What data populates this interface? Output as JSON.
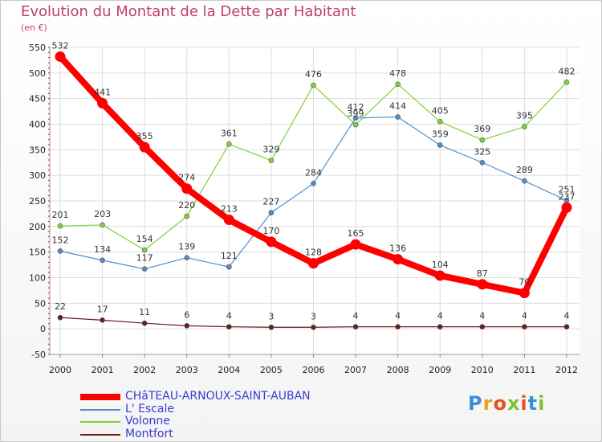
{
  "title": "Evolution du Montant de la Dette par Habitant",
  "unit_label": "(en €)",
  "colors": {
    "title": "#c0406a",
    "legend_text": "#3a3ad0",
    "axis": "#cc0000"
  },
  "chart_data": {
    "type": "line",
    "categories": [
      "2000",
      "2001",
      "2002",
      "2003",
      "2004",
      "2005",
      "2006",
      "2007",
      "2008",
      "2009",
      "2010",
      "2011",
      "2012"
    ],
    "ylim": [
      -50,
      550
    ],
    "yticks": [
      -50,
      0,
      50,
      100,
      150,
      200,
      250,
      300,
      350,
      400,
      450,
      500,
      550
    ],
    "grid": true,
    "legend_position": "bottom-left",
    "series": [
      {
        "name": "CHâTEAU-ARNOUX-SAINT-AUBAN",
        "color": "#ff0000",
        "values": [
          532,
          441,
          355,
          274,
          213,
          170,
          128,
          165,
          136,
          104,
          87,
          70,
          237
        ]
      },
      {
        "name": "L' Escale",
        "color": "#4f8fc9",
        "values": [
          152,
          134,
          117,
          139,
          121,
          227,
          284,
          412,
          414,
          359,
          325,
          289,
          251
        ]
      },
      {
        "name": "Volonne",
        "color": "#7ed23b",
        "values": [
          201,
          203,
          154,
          220,
          361,
          329,
          476,
          399,
          478,
          405,
          369,
          395,
          482
        ]
      },
      {
        "name": "Montfort",
        "color": "#6b1c1c",
        "values": [
          22,
          17,
          11,
          6,
          4,
          3,
          3,
          4,
          4,
          4,
          4,
          4,
          4
        ]
      }
    ]
  },
  "logo": {
    "letters": [
      "P",
      "r",
      "o",
      "x",
      "i",
      "t",
      "i"
    ],
    "colors": [
      "#3a8fd8",
      "#f0a020",
      "#e94f1f",
      "#7cc230",
      "#e94f1f",
      "#3a8fd8",
      "#7cc230"
    ]
  }
}
